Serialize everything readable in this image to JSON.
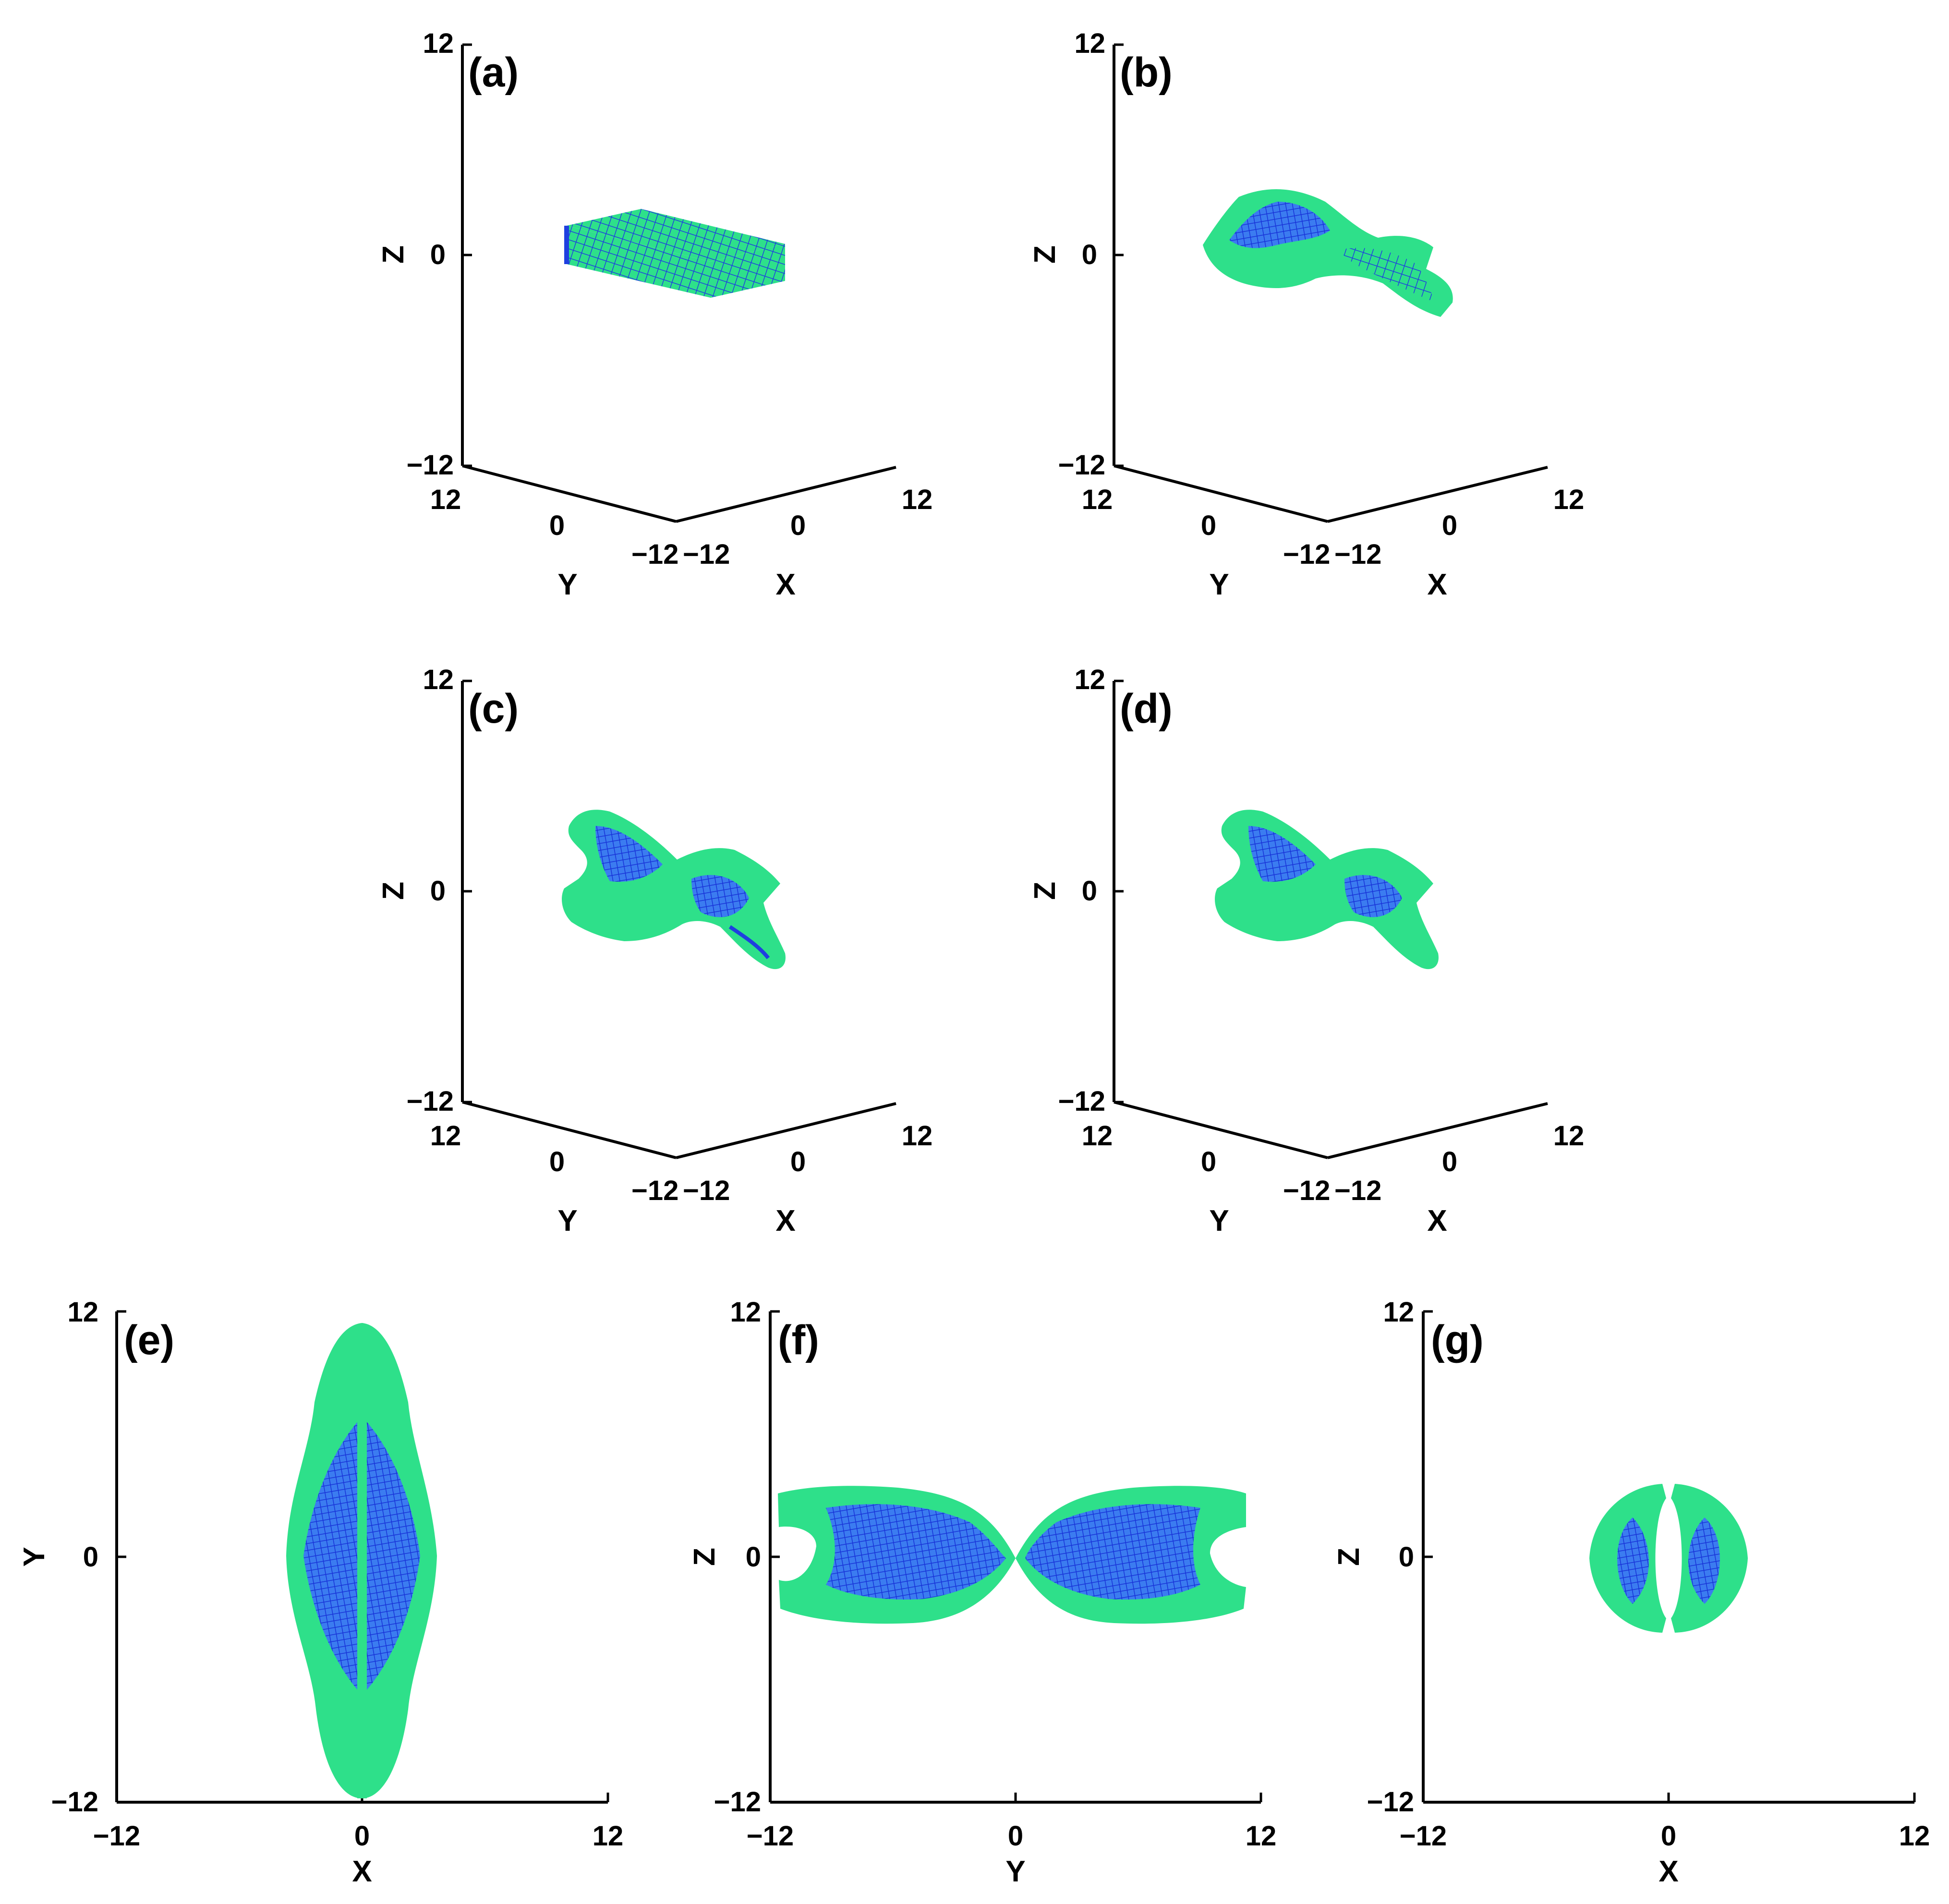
{
  "panels": {
    "a": {
      "label": "(a)",
      "z_top": "12",
      "z_zero": "0",
      "z_bottom": "−12",
      "y_pos": "12",
      "y_zero": "0",
      "y_neg": "−12",
      "x_neg": "−12",
      "x_zero": "0",
      "x_pos": "12",
      "zlabel": "Z",
      "ylabel": "Y",
      "xlabel": "X"
    },
    "b": {
      "label": "(b)",
      "z_top": "12",
      "z_zero": "0",
      "z_bottom": "−12",
      "y_pos": "12",
      "y_zero": "0",
      "y_neg": "−12",
      "x_neg": "−12",
      "x_zero": "0",
      "x_pos": "12",
      "zlabel": "Z",
      "ylabel": "Y",
      "xlabel": "X"
    },
    "c": {
      "label": "(c)",
      "z_top": "12",
      "z_zero": "0",
      "z_bottom": "−12",
      "y_pos": "12",
      "y_zero": "0",
      "y_neg": "−12",
      "x_neg": "−12",
      "x_zero": "0",
      "x_pos": "12",
      "zlabel": "Z",
      "ylabel": "Y",
      "xlabel": "X"
    },
    "d": {
      "label": "(d)",
      "z_top": "12",
      "z_zero": "0",
      "z_bottom": "−12",
      "y_pos": "12",
      "y_zero": "0",
      "y_neg": "−12",
      "x_neg": "−12",
      "x_zero": "0",
      "x_pos": "12",
      "zlabel": "Z",
      "ylabel": "Y",
      "xlabel": "X"
    },
    "e": {
      "label": "(e)",
      "y_top": "12",
      "y_zero": "0",
      "y_bottom": "−12",
      "x_left": "−12",
      "x_zero": "0",
      "x_right": "12",
      "vlabel": "Y",
      "hlabel": "X"
    },
    "f": {
      "label": "(f)",
      "y_top": "12",
      "y_zero": "0",
      "y_bottom": "−12",
      "x_left": "−12",
      "x_zero": "0",
      "x_right": "12",
      "vlabel": "Z",
      "hlabel": "Y"
    },
    "g": {
      "label": "(g)",
      "y_top": "12",
      "y_zero": "0",
      "y_bottom": "−12",
      "x_left": "−12",
      "x_zero": "0",
      "x_right": "12",
      "vlabel": "Z",
      "hlabel": "X"
    }
  },
  "colors": {
    "surface": "#2ee08a",
    "mesh": "#1f3fe0",
    "axis": "#000000"
  }
}
